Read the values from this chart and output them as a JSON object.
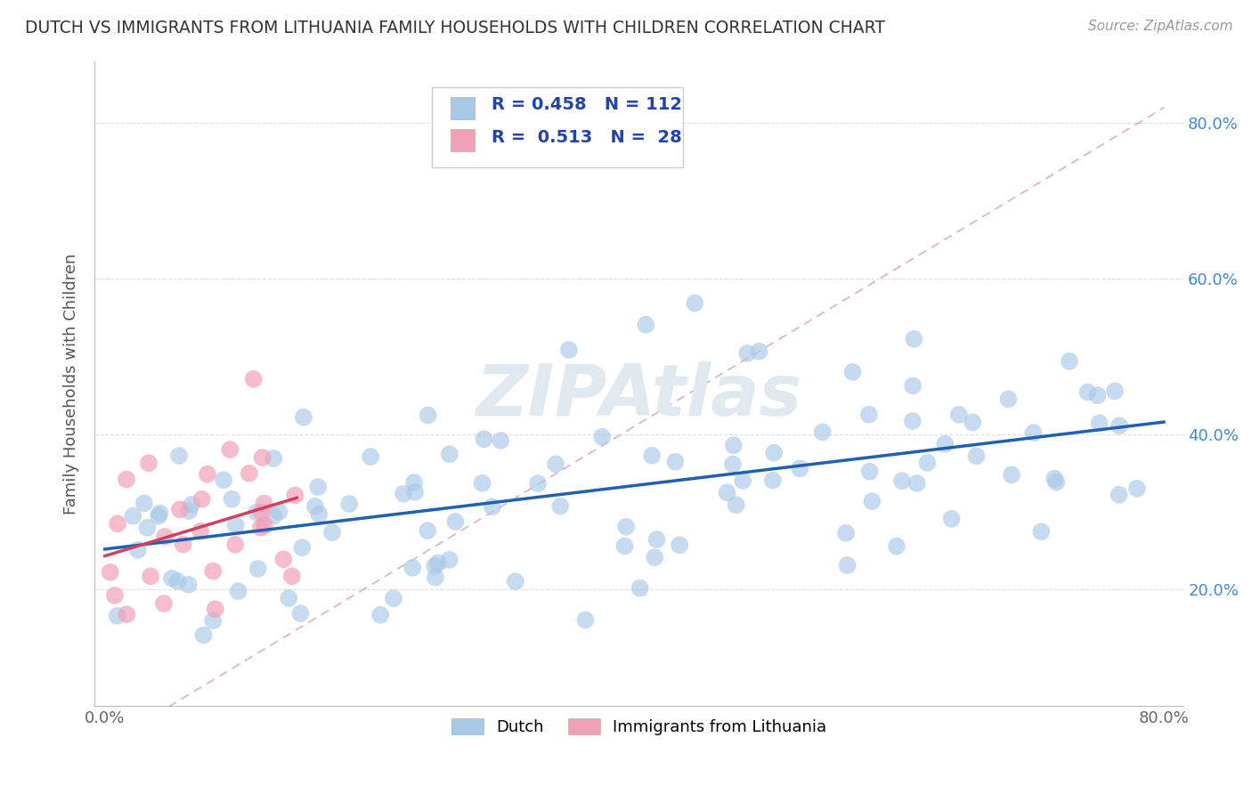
{
  "title": "DUTCH VS IMMIGRANTS FROM LITHUANIA FAMILY HOUSEHOLDS WITH CHILDREN CORRELATION CHART",
  "source": "Source: ZipAtlas.com",
  "ylabel": "Family Households with Children",
  "R_dutch": 0.458,
  "N_dutch": 112,
  "R_lith": 0.513,
  "N_lith": 28,
  "dutch_color": "#a8c8e8",
  "lith_color": "#f0a0b8",
  "dutch_line_color": "#2060b0",
  "lith_line_color": "#d04060",
  "ref_line_color": "#e0b0b8",
  "background_color": "#ffffff",
  "grid_color": "#dddddd",
  "title_color": "#333333",
  "watermark_color": "#e0e8f0",
  "tick_color": "#4488cc",
  "legend_text_color": "#2244aa"
}
